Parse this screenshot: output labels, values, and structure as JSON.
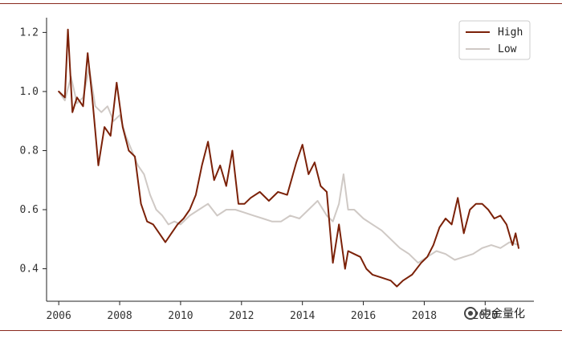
{
  "chart_data": {
    "type": "line",
    "xlabel": "",
    "ylabel": "",
    "xlim": [
      2005.6,
      2021.6
    ],
    "ylim": [
      0.29,
      1.25
    ],
    "x_ticks": [
      2006,
      2008,
      2010,
      2012,
      2014,
      2016,
      2018,
      2020
    ],
    "x_tick_labels": [
      "2006",
      "2008",
      "2010",
      "2012",
      "2014",
      "2016",
      "2018",
      "2020"
    ],
    "y_ticks": [
      0.4,
      0.6,
      0.8,
      1.0,
      1.2
    ],
    "y_tick_labels": [
      "0.4",
      "0.6",
      "0.8",
      "1.0",
      "1.2"
    ],
    "grid": false,
    "legend_position": "top-right",
    "series": [
      {
        "name": "High",
        "color": "#7b2108",
        "x": [
          2006.0,
          2006.2,
          2006.3,
          2006.45,
          2006.6,
          2006.8,
          2006.95,
          2007.1,
          2007.3,
          2007.5,
          2007.7,
          2007.9,
          2008.1,
          2008.3,
          2008.5,
          2008.7,
          2008.9,
          2009.1,
          2009.3,
          2009.5,
          2009.7,
          2009.9,
          2010.1,
          2010.3,
          2010.5,
          2010.7,
          2010.9,
          2011.1,
          2011.3,
          2011.5,
          2011.7,
          2011.9,
          2012.1,
          2012.3,
          2012.6,
          2012.9,
          2013.2,
          2013.5,
          2013.8,
          2014.0,
          2014.2,
          2014.4,
          2014.6,
          2014.8,
          2015.0,
          2015.2,
          2015.4,
          2015.5,
          2015.7,
          2015.9,
          2016.1,
          2016.3,
          2016.6,
          2016.9,
          2017.1,
          2017.3,
          2017.6,
          2017.9,
          2018.1,
          2018.3,
          2018.5,
          2018.7,
          2018.9,
          2019.1,
          2019.3,
          2019.5,
          2019.7,
          2019.9,
          2020.1,
          2020.3,
          2020.5,
          2020.7,
          2020.9,
          2021.0,
          2021.1
        ],
        "values": [
          1.0,
          0.98,
          1.21,
          0.93,
          0.98,
          0.95,
          1.13,
          0.98,
          0.75,
          0.88,
          0.85,
          1.03,
          0.88,
          0.8,
          0.78,
          0.62,
          0.56,
          0.55,
          0.52,
          0.49,
          0.52,
          0.55,
          0.57,
          0.6,
          0.65,
          0.75,
          0.83,
          0.7,
          0.75,
          0.68,
          0.8,
          0.62,
          0.62,
          0.64,
          0.66,
          0.63,
          0.66,
          0.65,
          0.76,
          0.82,
          0.72,
          0.76,
          0.68,
          0.66,
          0.42,
          0.55,
          0.4,
          0.46,
          0.45,
          0.44,
          0.4,
          0.38,
          0.37,
          0.36,
          0.34,
          0.36,
          0.38,
          0.42,
          0.44,
          0.48,
          0.54,
          0.57,
          0.55,
          0.64,
          0.52,
          0.6,
          0.62,
          0.62,
          0.6,
          0.57,
          0.58,
          0.55,
          0.48,
          0.52,
          0.47
        ]
      },
      {
        "name": "Low",
        "color": "#cfc9c5",
        "x": [
          2006.0,
          2006.2,
          2006.4,
          2006.6,
          2006.8,
          2007.0,
          2007.2,
          2007.4,
          2007.6,
          2007.8,
          2008.0,
          2008.2,
          2008.4,
          2008.6,
          2008.8,
          2009.0,
          2009.2,
          2009.4,
          2009.6,
          2009.8,
          2010.0,
          2010.3,
          2010.6,
          2010.9,
          2011.2,
          2011.5,
          2011.8,
          2012.1,
          2012.4,
          2012.7,
          2013.0,
          2013.3,
          2013.6,
          2013.9,
          2014.2,
          2014.5,
          2014.8,
          2015.0,
          2015.2,
          2015.35,
          2015.5,
          2015.7,
          2016.0,
          2016.3,
          2016.6,
          2016.9,
          2017.2,
          2017.5,
          2017.8,
          2018.1,
          2018.4,
          2018.7,
          2019.0,
          2019.3,
          2019.6,
          2019.9,
          2020.2,
          2020.5,
          2020.8,
          2021.1
        ],
        "values": [
          1.0,
          0.97,
          1.05,
          0.96,
          0.98,
          1.08,
          0.95,
          0.93,
          0.95,
          0.9,
          0.92,
          0.85,
          0.8,
          0.75,
          0.72,
          0.65,
          0.6,
          0.58,
          0.55,
          0.56,
          0.55,
          0.58,
          0.6,
          0.62,
          0.58,
          0.6,
          0.6,
          0.59,
          0.58,
          0.57,
          0.56,
          0.56,
          0.58,
          0.57,
          0.6,
          0.63,
          0.58,
          0.56,
          0.62,
          0.72,
          0.6,
          0.6,
          0.57,
          0.55,
          0.53,
          0.5,
          0.47,
          0.45,
          0.42,
          0.44,
          0.46,
          0.45,
          0.43,
          0.44,
          0.45,
          0.47,
          0.48,
          0.47,
          0.49,
          0.48
        ]
      }
    ]
  },
  "watermark": {
    "text": "中金量化"
  }
}
